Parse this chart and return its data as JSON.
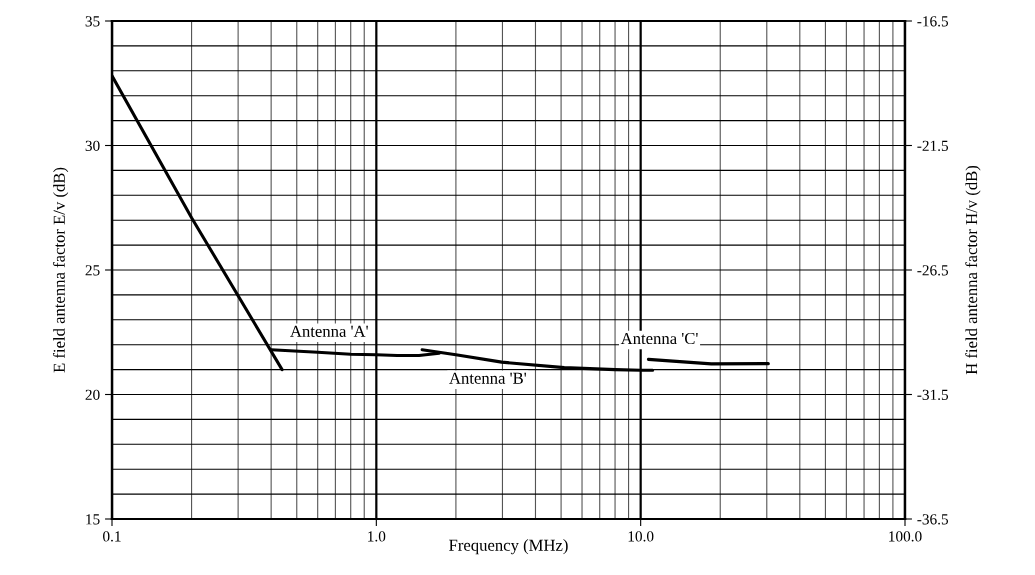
{
  "chart_data": {
    "type": "line",
    "log": "x",
    "xlabel": "Frequency (MHz)",
    "ylabel": "E field antenna factor E/v (dB)",
    "y2label": "H field antenna factor H/v (dB)",
    "xlim": [
      0.1,
      100
    ],
    "xticks": [
      {
        "value": 0.1,
        "label": "0.1"
      },
      {
        "value": 1,
        "label": "1.0"
      },
      {
        "value": 10,
        "label": "10.0"
      },
      {
        "value": 100,
        "label": "100.0"
      }
    ],
    "ylim": [
      15,
      35
    ],
    "yticks": [
      15,
      20,
      25,
      30,
      35
    ],
    "y2lim": [
      -36.5,
      -16.5
    ],
    "y2ticks": [
      -36.5,
      -31.5,
      -26.5,
      -21.5,
      -16.5
    ],
    "grid": true,
    "line_style": "solid",
    "marker": "none",
    "series": [
      {
        "color": "#000000",
        "x": [
          0.1,
          0.2,
          0.44
        ],
        "values": [
          32.8,
          27.1,
          21.0
        ]
      },
      {
        "color": "#000000",
        "x": [
          0.4,
          0.6,
          0.8,
          1.0,
          1.2,
          1.45,
          1.73
        ],
        "values": [
          21.8,
          21.7,
          21.62,
          21.6,
          21.57,
          21.57,
          21.66
        ]
      },
      {
        "color": "#000000",
        "x": [
          1.49,
          2.0,
          2.98,
          5.14,
          8.0,
          10,
          11.1
        ],
        "values": [
          21.8,
          21.6,
          21.3,
          21.08,
          21.0,
          20.97,
          20.97
        ]
      },
      {
        "color": "#000000",
        "x": [
          10.7,
          18.5,
          30.4
        ],
        "values": [
          21.41,
          21.23,
          21.24
        ]
      }
    ],
    "annotations": [
      {
        "text": "Antenna 'A'",
        "x": 0.6,
        "y": 21.7
      },
      {
        "text": "Antenna 'B'",
        "x": 2.0,
        "y": 21.6
      },
      {
        "text": "Antenna 'C'",
        "x": 10.7,
        "y": 21.41
      }
    ]
  }
}
